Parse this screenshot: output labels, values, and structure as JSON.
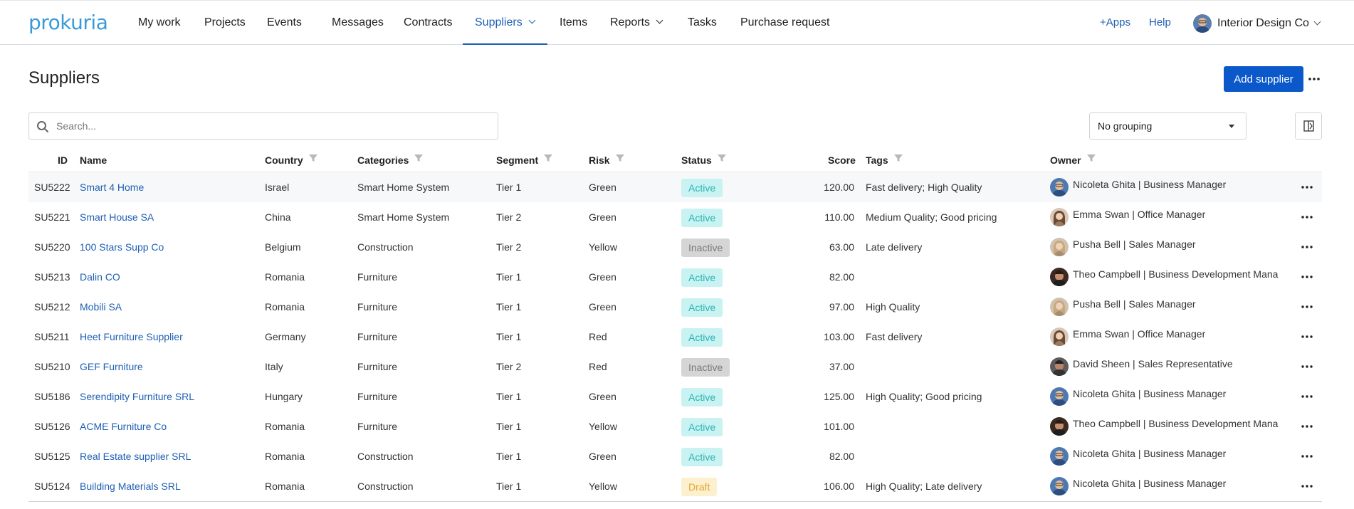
{
  "app": {
    "logo_text": "prokuria"
  },
  "nav": {
    "items": [
      {
        "label": "My work"
      },
      {
        "label": "Projects"
      },
      {
        "label": "Events"
      },
      {
        "label": "Messages"
      },
      {
        "label": "Contracts"
      },
      {
        "label": "Suppliers"
      },
      {
        "label": "Items"
      },
      {
        "label": "Reports"
      },
      {
        "label": "Tasks"
      },
      {
        "label": "Purchase request"
      }
    ],
    "active_item": "Suppliers",
    "apps_label": "+Apps",
    "help_label": "Help",
    "company_label": "Interior Design Co"
  },
  "page": {
    "title": "Suppliers",
    "add_button_label": "Add supplier"
  },
  "search": {
    "placeholder": "Search...",
    "value": ""
  },
  "grouping": {
    "selected": "No grouping"
  },
  "table": {
    "headers": {
      "id": "ID",
      "name": "Name",
      "country": "Country",
      "categories": "Categories",
      "segment": "Segment",
      "risk": "Risk",
      "status": "Status",
      "score": "Score",
      "tags": "Tags",
      "owner": "Owner"
    },
    "rows": [
      {
        "id": "SU5222",
        "name": "Smart 4 Home",
        "country": "Israel",
        "categories": "Smart Home System",
        "segment": "Tier 1",
        "risk": "Green",
        "status": "Active",
        "score": "120.00",
        "tags": "Fast delivery; High Quality",
        "owner": "Nicoleta Ghita | Business Manager"
      },
      {
        "id": "SU5221",
        "name": "Smart House SA",
        "country": "China",
        "categories": "Smart Home System",
        "segment": "Tier 2",
        "risk": "Green",
        "status": "Active",
        "score": "110.00",
        "tags": "Medium Quality; Good pricing",
        "owner": "Emma Swan | Office Manager"
      },
      {
        "id": "SU5220",
        "name": "100 Stars Supp Co",
        "country": "Belgium",
        "categories": "Construction",
        "segment": "Tier 2",
        "risk": "Yellow",
        "status": "Inactive",
        "score": "63.00",
        "tags": "Late delivery",
        "owner": "Pusha Bell | Sales Manager"
      },
      {
        "id": "SU5213",
        "name": "Dalin CO",
        "country": "Romania",
        "categories": "Furniture",
        "segment": "Tier 1",
        "risk": "Green",
        "status": "Active",
        "score": "82.00",
        "tags": "",
        "owner": "Theo Campbell | Business Development Mana"
      },
      {
        "id": "SU5212",
        "name": "Mobili SA",
        "country": "Romania",
        "categories": "Furniture",
        "segment": "Tier 1",
        "risk": "Green",
        "status": "Active",
        "score": "97.00",
        "tags": "High Quality",
        "owner": "Pusha Bell | Sales Manager"
      },
      {
        "id": "SU5211",
        "name": "Heet Furniture Supplier",
        "country": "Germany",
        "categories": "Furniture",
        "segment": "Tier 1",
        "risk": "Red",
        "status": "Active",
        "score": "103.00",
        "tags": "Fast delivery",
        "owner": "Emma Swan | Office Manager"
      },
      {
        "id": "SU5210",
        "name": "GEF Furniture",
        "country": "Italy",
        "categories": "Furniture",
        "segment": "Tier 2",
        "risk": "Red",
        "status": "Inactive",
        "score": "37.00",
        "tags": "",
        "owner": "David Sheen | Sales Representative"
      },
      {
        "id": "SU5186",
        "name": "Serendipity Furniture SRL",
        "country": "Hungary",
        "categories": "Furniture",
        "segment": "Tier 1",
        "risk": "Green",
        "status": "Active",
        "score": "125.00",
        "tags": "High Quality; Good pricing",
        "owner": "Nicoleta Ghita | Business Manager"
      },
      {
        "id": "SU5126",
        "name": "ACME Furniture Co",
        "country": "Romania",
        "categories": "Furniture",
        "segment": "Tier 1",
        "risk": "Yellow",
        "status": "Active",
        "score": "101.00",
        "tags": "",
        "owner": "Theo Campbell | Business Development Mana"
      },
      {
        "id": "SU5125",
        "name": "Real Estate supplier SRL",
        "country": "Romania",
        "categories": "Construction",
        "segment": "Tier 1",
        "risk": "Green",
        "status": "Active",
        "score": "82.00",
        "tags": "",
        "owner": "Nicoleta Ghita | Business Manager"
      },
      {
        "id": "SU5124",
        "name": "Building Materials SRL",
        "country": "Romania",
        "categories": "Construction",
        "segment": "Tier 1",
        "risk": "Yellow",
        "status": "Draft",
        "score": "106.00",
        "tags": "High Quality; Late delivery",
        "owner": "Nicoleta Ghita | Business Manager"
      }
    ]
  },
  "colors": {
    "accent": "#1f5fb4",
    "primary_button": "#0a58ca",
    "status_active_bg": "#c9f3f2",
    "status_active_text": "#2ab3b3",
    "status_inactive_bg": "#d5d5d5",
    "status_draft_bg": "#fdf0cf"
  }
}
